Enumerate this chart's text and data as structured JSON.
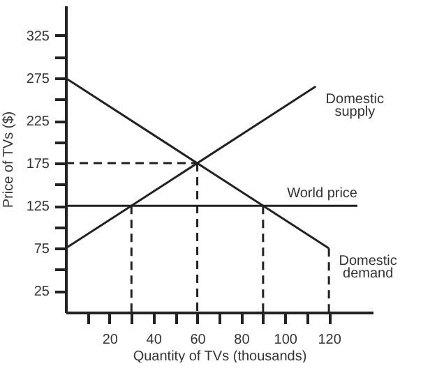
{
  "chart_data": {
    "type": "line",
    "xlabel": "Quantity of TVs (thousands)",
    "ylabel": "Price of TVs ($)",
    "xlim": [
      0,
      140
    ],
    "ylim": [
      0,
      360
    ],
    "xticks": [
      {
        "value": 10,
        "label": null
      },
      20,
      {
        "value": 30,
        "label": null
      },
      40,
      {
        "value": 50,
        "label": null
      },
      60,
      {
        "value": 70,
        "label": null
      },
      80,
      {
        "value": 90,
        "label": null
      },
      100,
      {
        "value": 110,
        "label": null
      },
      120
    ],
    "yticks": [
      25,
      {
        "value": 50,
        "label": null
      },
      75,
      {
        "value": 100,
        "label": null
      },
      125,
      {
        "value": 150,
        "label": null
      },
      175,
      {
        "value": 200,
        "label": null
      },
      225,
      {
        "value": 250,
        "label": null
      },
      275,
      {
        "value": 300,
        "label": null
      },
      325
    ],
    "series": [
      {
        "name": "Domestic supply",
        "color": "#222222",
        "x": [
          0,
          114
        ],
        "values": [
          75,
          265
        ]
      },
      {
        "name": "Domestic demand",
        "color": "#222222",
        "x": [
          0,
          120
        ],
        "values": [
          275,
          75
        ]
      },
      {
        "name": "World price",
        "color": "#222222",
        "x": [
          0,
          133
        ],
        "values": [
          125,
          125
        ]
      },
      {
        "color": "#222222",
        "line_style": "dashed",
        "x": [
          0,
          60
        ],
        "values": [
          175,
          175
        ]
      },
      {
        "color": "#222222",
        "line_style": "dashed",
        "x": [
          60,
          60
        ],
        "values": [
          175,
          0
        ]
      },
      {
        "color": "#222222",
        "line_style": "dashed",
        "x": [
          30,
          30
        ],
        "values": [
          125,
          0
        ]
      },
      {
        "color": "#222222",
        "line_style": "dashed",
        "x": [
          90,
          90
        ],
        "values": [
          125,
          0
        ]
      },
      {
        "color": "#222222",
        "line_style": "dashed",
        "x": [
          120,
          120
        ],
        "values": [
          75,
          0
        ]
      }
    ]
  }
}
